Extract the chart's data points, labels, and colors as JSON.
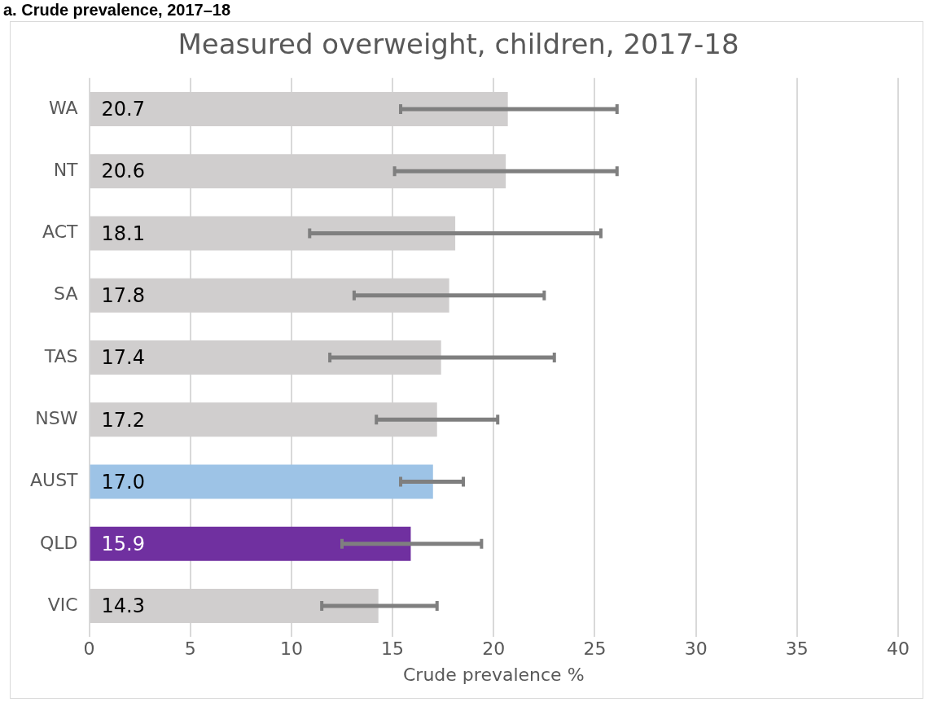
{
  "chart_data": {
    "type": "bar",
    "orientation": "horizontal",
    "title": "Measured overweight, children, 2017-18",
    "xlabel": "Crude prevalence %",
    "annotations": [
      "a. Crude prevalence, 2017–18"
    ],
    "categories": [
      "WA",
      "NT",
      "ACT",
      "SA",
      "TAS",
      "NSW",
      "AUST",
      "QLD",
      "VIC"
    ],
    "values": [
      20.7,
      20.6,
      18.1,
      17.8,
      17.4,
      17.2,
      17.0,
      15.9,
      14.3
    ],
    "colors": [
      "#d0cece",
      "#d0cece",
      "#d0cece",
      "#d0cece",
      "#d0cece",
      "#d0cece",
      "#9dc3e6",
      "#7030a0",
      "#d0cece"
    ],
    "errors": [
      [
        15.4,
        26.1
      ],
      [
        15.1,
        26.1
      ],
      [
        10.9,
        25.3
      ],
      [
        13.1,
        22.5
      ],
      [
        11.9,
        23.0
      ],
      [
        14.2,
        20.2
      ],
      [
        15.4,
        18.5
      ],
      [
        12.5,
        19.4
      ],
      [
        11.5,
        17.2
      ]
    ],
    "value_labels": [
      "20.7",
      "20.6",
      "18.1",
      "17.8",
      "17.4",
      "17.2",
      "17.0",
      "15.9",
      "14.3"
    ],
    "xlim": [
      0,
      40
    ],
    "xticks": [
      0,
      5,
      10,
      15,
      20,
      25,
      30,
      35,
      40
    ],
    "grid": "x",
    "legend": false
  }
}
